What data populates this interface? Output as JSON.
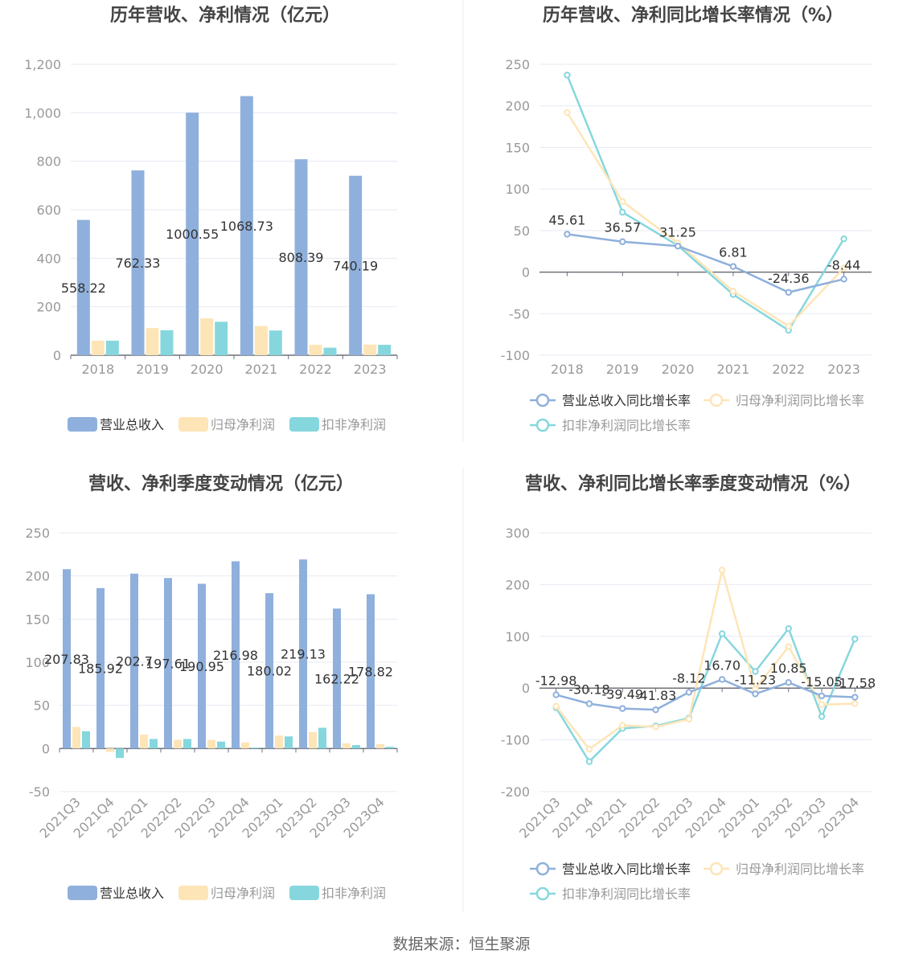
{
  "footer": {
    "source": "数据来源：恒生聚源"
  },
  "colors": {
    "revenue": "#8fb0dc",
    "netprofit": "#fde5b7",
    "deducted": "#86d7dd",
    "grid": "#e6e9f2",
    "axis": "#6e7079",
    "label": "#999999",
    "title": "#444444"
  },
  "chart_data": [
    {
      "type": "bar",
      "title": "历年营收、净利情况（亿元）",
      "categories": [
        "2018",
        "2019",
        "2020",
        "2021",
        "2022",
        "2023"
      ],
      "ylim": [
        0,
        1200
      ],
      "yticks": [
        "0",
        "200",
        "400",
        "600",
        "800",
        "1,000",
        "1,200"
      ],
      "grid": true,
      "legend": "bottom",
      "series": [
        {
          "name": "营业总收入",
          "values": [
            558.22,
            762.33,
            1000.55,
            1068.73,
            808.39,
            740.19
          ],
          "labels": [
            "558.22",
            "762.33",
            "1000.55",
            "1068.73",
            "808.39",
            "740.19"
          ]
        },
        {
          "name": "归母净利润",
          "values": [
            60,
            112,
            152,
            120,
            43,
            44
          ]
        },
        {
          "name": "扣非净利润",
          "values": [
            60,
            103,
            138,
            102,
            31,
            43
          ]
        }
      ]
    },
    {
      "type": "line",
      "title": "历年营收、净利同比增长率情况（%）",
      "categories": [
        "2018",
        "2019",
        "2020",
        "2021",
        "2022",
        "2023"
      ],
      "ylim": [
        -100,
        250
      ],
      "yticks": [
        "-100",
        "-50",
        "0",
        "50",
        "100",
        "150",
        "200",
        "250"
      ],
      "grid": true,
      "legend": "bottom",
      "series": [
        {
          "name": "营业总收入同比增长率",
          "values": [
            45.61,
            36.57,
            31.25,
            6.81,
            -24.36,
            -8.44
          ],
          "labels": [
            "45.61",
            "36.57",
            "31.25",
            "6.81",
            "-24.36",
            "-8.44"
          ]
        },
        {
          "name": "归母净利润同比增长率",
          "values": [
            192,
            85,
            35,
            -23,
            -65,
            5
          ]
        },
        {
          "name": "扣非净利润同比增长率",
          "values": [
            237,
            72,
            32,
            -27,
            -70,
            40
          ]
        }
      ]
    },
    {
      "type": "bar",
      "title": "营收、净利季度变动情况（亿元）",
      "categories": [
        "2021Q3",
        "2021Q4",
        "2022Q1",
        "2022Q2",
        "2022Q3",
        "2022Q4",
        "2023Q1",
        "2023Q2",
        "2023Q3",
        "2023Q4"
      ],
      "ylim": [
        -50,
        250
      ],
      "yticks": [
        "-50",
        "0",
        "50",
        "100",
        "150",
        "200",
        "250"
      ],
      "grid": true,
      "legend": "bottom",
      "series": [
        {
          "name": "营业总收入",
          "values": [
            207.83,
            185.92,
            202.7,
            197.61,
            190.95,
            216.98,
            180.02,
            219.13,
            162.22,
            178.82
          ],
          "labels": [
            "207.83",
            "185.92",
            "202.7",
            "197.61",
            "190.95",
            "216.98",
            "180.02",
            "219.13",
            "162.22",
            "178.82"
          ]
        },
        {
          "name": "归母净利润",
          "values": [
            25,
            -4,
            16,
            10,
            10,
            7,
            15,
            19,
            6,
            5
          ]
        },
        {
          "name": "扣非净利润",
          "values": [
            20,
            -11,
            11,
            11,
            8,
            1,
            14,
            24,
            4,
            2
          ]
        }
      ]
    },
    {
      "type": "line",
      "title": "营收、净利同比增长率季度变动情况（%）",
      "categories": [
        "2021Q3",
        "2021Q4",
        "2022Q1",
        "2022Q2",
        "2022Q3",
        "2022Q4",
        "2023Q1",
        "2023Q2",
        "2023Q3",
        "2023Q4"
      ],
      "ylim": [
        -200,
        300
      ],
      "yticks": [
        "-200",
        "-100",
        "0",
        "100",
        "200",
        "300"
      ],
      "grid": true,
      "legend": "bottom",
      "series": [
        {
          "name": "营业总收入同比增长率",
          "values": [
            -12.98,
            -30.18,
            -39.49,
            -41.83,
            -8.12,
            16.7,
            -11.23,
            10.85,
            -15.05,
            -17.58
          ],
          "labels": [
            "-12.98",
            "-30.18",
            "-39.49",
            "-41.83",
            "-8.12",
            "16.70",
            "-11.23",
            "10.85",
            "-15.05",
            "-17.58"
          ]
        },
        {
          "name": "归母净利润同比增长率",
          "values": [
            -35,
            -118,
            -72,
            -75,
            -60,
            228,
            -2,
            80,
            -32,
            -30
          ]
        },
        {
          "name": "扣非净利润同比增长率",
          "values": [
            -38,
            -142,
            -78,
            -73,
            -58,
            105,
            32,
            115,
            -55,
            95
          ]
        }
      ]
    }
  ]
}
